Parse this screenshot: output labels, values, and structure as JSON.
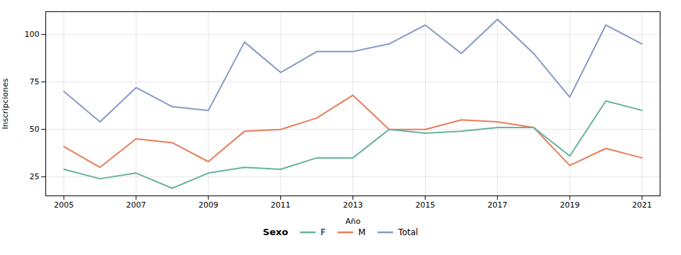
{
  "chart_data": {
    "type": "line",
    "x": [
      2005,
      2006,
      2007,
      2008,
      2009,
      2010,
      2011,
      2012,
      2013,
      2014,
      2015,
      2016,
      2017,
      2018,
      2019,
      2020,
      2021
    ],
    "series": [
      {
        "name": "F",
        "color": "#66b2a2",
        "values": [
          29,
          24,
          27,
          19,
          27,
          30,
          29,
          35,
          35,
          50,
          48,
          49,
          51,
          51,
          36,
          65,
          60
        ]
      },
      {
        "name": "M",
        "color": "#e87d5a",
        "values": [
          41,
          30,
          45,
          43,
          33,
          49,
          50,
          56,
          68,
          50,
          50,
          55,
          54,
          51,
          31,
          40,
          35
        ]
      },
      {
        "name": "Total",
        "color": "#8899c8",
        "values": [
          70,
          54,
          72,
          62,
          60,
          96,
          80,
          91,
          91,
          95,
          105,
          90,
          108,
          90,
          67,
          105,
          95
        ]
      }
    ],
    "xlabel": "Año",
    "ylabel": "Inscripciones",
    "legend_title": "Sexo",
    "xlim": [
      2004.5,
      2021.5
    ],
    "ylim": [
      15,
      112
    ],
    "xticks": [
      2005,
      2007,
      2009,
      2011,
      2013,
      2015,
      2017,
      2019,
      2021
    ],
    "yticks": [
      25,
      50,
      75,
      100
    ],
    "grid": true,
    "legend": "bottom"
  }
}
